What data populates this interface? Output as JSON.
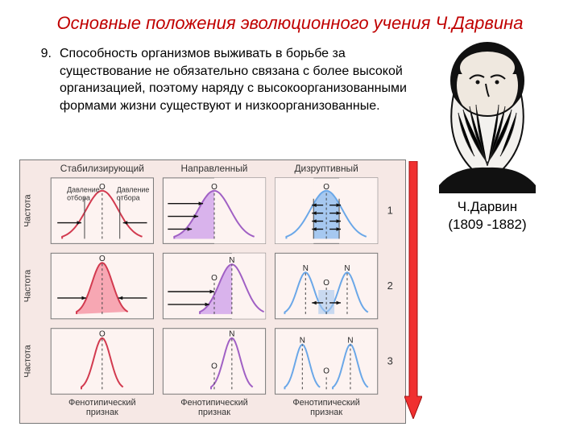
{
  "title": "Основные положения эволюционного учения Ч.Дарвина",
  "list_number": "9.",
  "paragraph": "Способность организмов выживать в борьбе за существование не обязательно связана с более высокой организацией, поэтому наряду с высокоорганизованными формами жизни существуют и низкоорганизованные.",
  "caption_name": "Ч.Дарвин",
  "caption_years": "(1809 -1882)",
  "chart": {
    "bg": "#f6e8e5",
    "panel_bg": "#fdf3f1",
    "border": "#777777",
    "col_headers": [
      "Стабилизирующий",
      "Направленный",
      "Дизруптивный"
    ],
    "row_numbers": [
      "1",
      "2",
      "3"
    ],
    "y_label": "Частота",
    "x_label": "Фенотипический признак",
    "curve_red": "#d23a4f",
    "curve_violet": "#a060c4",
    "curve_blue": "#6aa7e8",
    "fill_red": "#f7a7b3",
    "fill_violet": "#d9b3ec",
    "fill_blue": "#a6c8f0",
    "text_color": "#333333",
    "arrow_color": "#111111",
    "pressure_label": "Давление отбора",
    "marker_O": "O",
    "marker_N": "N",
    "big_arrow_fill": "#f03030",
    "big_arrow_stroke": "#a01010"
  }
}
